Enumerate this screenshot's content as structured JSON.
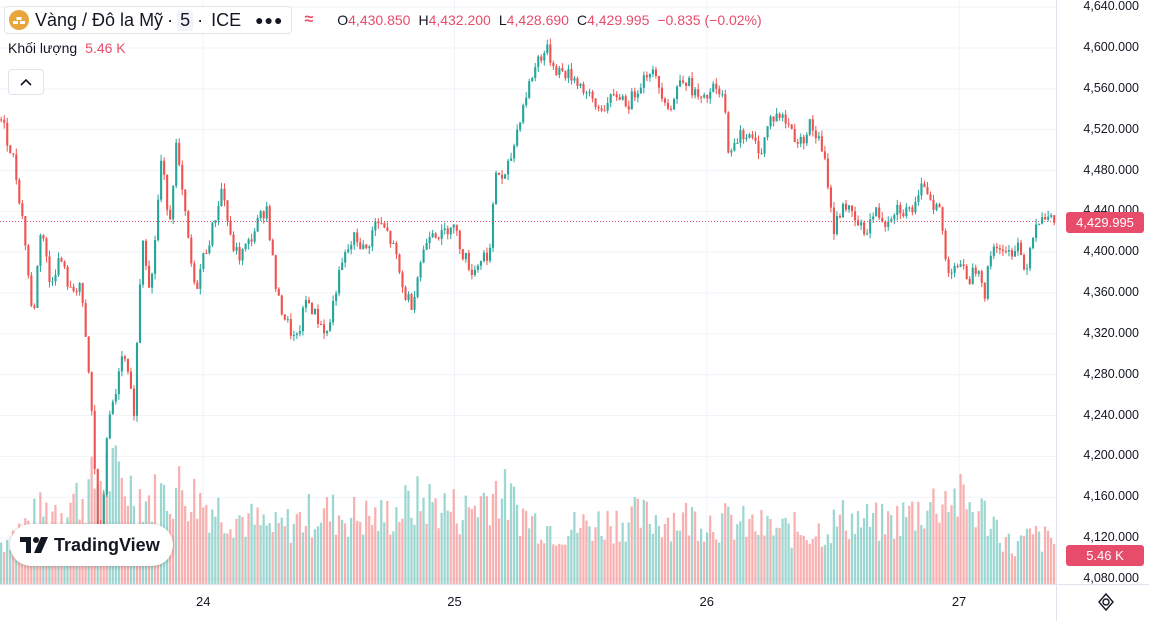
{
  "header": {
    "symbol_name": "Vàng / Đô la Mỹ",
    "separator": "·",
    "interval": "5",
    "exchange": "ICE",
    "more_icon": "ellipsis-icon",
    "approx_symbol": "≈",
    "ohlc": {
      "o_label": "O",
      "o_value": "4,430.850",
      "h_label": "H",
      "h_value": "4,432.200",
      "l_label": "L",
      "l_value": "4,428.690",
      "c_label": "C",
      "c_value": "4,429.995",
      "change": "−0.835 (−0.02%)"
    }
  },
  "volume_legend": {
    "label": "Khối lượng",
    "value": "5.46 K"
  },
  "logo": {
    "text": "TradingView"
  },
  "price_tag": {
    "value": "4,429.995",
    "numeric": 4429.995
  },
  "volume_tag": {
    "value": "5.46 K"
  },
  "colors": {
    "up": "#26a69a",
    "down": "#ef5350",
    "accent": "#e84c6b",
    "grid": "#f0f3fa"
  },
  "chart_data": {
    "type": "candlestick",
    "title": "Vàng / Đô la Mỹ · 5 · ICE",
    "y_axis": {
      "ticks": [
        "4,640.000",
        "4,600.000",
        "4,560.000",
        "4,520.000",
        "4,480.000",
        "4,440.000",
        "4,400.000",
        "4,360.000",
        "4,320.000",
        "4,280.000",
        "4,240.000",
        "4,200.000",
        "4,160.000",
        "4,120.000",
        "4,080.000"
      ],
      "tick_values": [
        4640,
        4600,
        4560,
        4520,
        4480,
        4440,
        4400,
        4360,
        4320,
        4280,
        4240,
        4200,
        4160,
        4120,
        4080
      ],
      "range": [
        4075,
        4647
      ]
    },
    "x_axis": {
      "ticks": [
        "24",
        "25",
        "26",
        "27"
      ],
      "tick_positions": [
        0.1925,
        0.4304,
        0.6693,
        0.9082
      ]
    },
    "price_path": [
      [
        0.0,
        4530
      ],
      [
        0.012,
        4490
      ],
      [
        0.022,
        4420
      ],
      [
        0.03,
        4330
      ],
      [
        0.038,
        4430
      ],
      [
        0.046,
        4370
      ],
      [
        0.056,
        4395
      ],
      [
        0.066,
        4360
      ],
      [
        0.075,
        4370
      ],
      [
        0.085,
        4260
      ],
      [
        0.094,
        4090
      ],
      [
        0.1,
        4220
      ],
      [
        0.108,
        4260
      ],
      [
        0.116,
        4300
      ],
      [
        0.126,
        4245
      ],
      [
        0.134,
        4420
      ],
      [
        0.142,
        4360
      ],
      [
        0.152,
        4490
      ],
      [
        0.16,
        4430
      ],
      [
        0.166,
        4505
      ],
      [
        0.174,
        4440
      ],
      [
        0.184,
        4360
      ],
      [
        0.192,
        4395
      ],
      [
        0.2,
        4420
      ],
      [
        0.21,
        4465
      ],
      [
        0.218,
        4410
      ],
      [
        0.226,
        4395
      ],
      [
        0.236,
        4410
      ],
      [
        0.244,
        4430
      ],
      [
        0.252,
        4445
      ],
      [
        0.262,
        4355
      ],
      [
        0.272,
        4330
      ],
      [
        0.28,
        4310
      ],
      [
        0.29,
        4355
      ],
      [
        0.3,
        4335
      ],
      [
        0.31,
        4320
      ],
      [
        0.318,
        4365
      ],
      [
        0.326,
        4395
      ],
      [
        0.336,
        4415
      ],
      [
        0.346,
        4400
      ],
      [
        0.356,
        4430
      ],
      [
        0.366,
        4420
      ],
      [
        0.374,
        4400
      ],
      [
        0.382,
        4360
      ],
      [
        0.39,
        4350
      ],
      [
        0.398,
        4390
      ],
      [
        0.408,
        4425
      ],
      [
        0.418,
        4415
      ],
      [
        0.428,
        4430
      ],
      [
        0.438,
        4400
      ],
      [
        0.448,
        4380
      ],
      [
        0.456,
        4395
      ],
      [
        0.464,
        4400
      ],
      [
        0.47,
        4480
      ],
      [
        0.478,
        4470
      ],
      [
        0.486,
        4500
      ],
      [
        0.492,
        4530
      ],
      [
        0.5,
        4560
      ],
      [
        0.51,
        4590
      ],
      [
        0.518,
        4598
      ],
      [
        0.526,
        4580
      ],
      [
        0.536,
        4575
      ],
      [
        0.546,
        4570
      ],
      [
        0.556,
        4555
      ],
      [
        0.566,
        4540
      ],
      [
        0.576,
        4545
      ],
      [
        0.586,
        4555
      ],
      [
        0.596,
        4545
      ],
      [
        0.606,
        4565
      ],
      [
        0.616,
        4580
      ],
      [
        0.626,
        4560
      ],
      [
        0.636,
        4540
      ],
      [
        0.646,
        4575
      ],
      [
        0.656,
        4560
      ],
      [
        0.666,
        4545
      ],
      [
        0.676,
        4560
      ],
      [
        0.686,
        4550
      ],
      [
        0.692,
        4490
      ],
      [
        0.702,
        4520
      ],
      [
        0.712,
        4510
      ],
      [
        0.722,
        4500
      ],
      [
        0.73,
        4530
      ],
      [
        0.738,
        4535
      ],
      [
        0.748,
        4525
      ],
      [
        0.758,
        4505
      ],
      [
        0.768,
        4525
      ],
      [
        0.776,
        4510
      ],
      [
        0.784,
        4480
      ],
      [
        0.79,
        4420
      ],
      [
        0.8,
        4450
      ],
      [
        0.81,
        4430
      ],
      [
        0.82,
        4420
      ],
      [
        0.83,
        4440
      ],
      [
        0.84,
        4430
      ],
      [
        0.85,
        4445
      ],
      [
        0.86,
        4440
      ],
      [
        0.87,
        4445
      ],
      [
        0.876,
        4470
      ],
      [
        0.884,
        4450
      ],
      [
        0.892,
        4440
      ],
      [
        0.898,
        4380
      ],
      [
        0.906,
        4390
      ],
      [
        0.914,
        4380
      ],
      [
        0.92,
        4375
      ],
      [
        0.928,
        4390
      ],
      [
        0.934,
        4360
      ],
      [
        0.94,
        4400
      ],
      [
        0.946,
        4410
      ],
      [
        0.952,
        4395
      ],
      [
        0.958,
        4400
      ],
      [
        0.966,
        4410
      ],
      [
        0.972,
        4380
      ],
      [
        0.98,
        4420
      ],
      [
        0.988,
        4440
      ],
      [
        0.996,
        4430
      ]
    ],
    "volume_path": [
      [
        0.0,
        0.35
      ],
      [
        0.04,
        0.6
      ],
      [
        0.08,
        0.75
      ],
      [
        0.1,
        0.95
      ],
      [
        0.14,
        0.7
      ],
      [
        0.17,
        0.8
      ],
      [
        0.2,
        0.65
      ],
      [
        0.26,
        0.45
      ],
      [
        0.3,
        0.6
      ],
      [
        0.36,
        0.55
      ],
      [
        0.4,
        0.7
      ],
      [
        0.44,
        0.6
      ],
      [
        0.47,
        0.8
      ],
      [
        0.5,
        0.55
      ],
      [
        0.53,
        0.45
      ],
      [
        0.56,
        0.5
      ],
      [
        0.6,
        0.55
      ],
      [
        0.66,
        0.55
      ],
      [
        0.7,
        0.5
      ],
      [
        0.74,
        0.45
      ],
      [
        0.78,
        0.45
      ],
      [
        0.8,
        0.55
      ],
      [
        0.84,
        0.5
      ],
      [
        0.88,
        0.65
      ],
      [
        0.9,
        0.75
      ],
      [
        0.94,
        0.55
      ],
      [
        0.96,
        0.3
      ],
      [
        0.98,
        0.4
      ],
      [
        1.0,
        0.35
      ]
    ]
  }
}
